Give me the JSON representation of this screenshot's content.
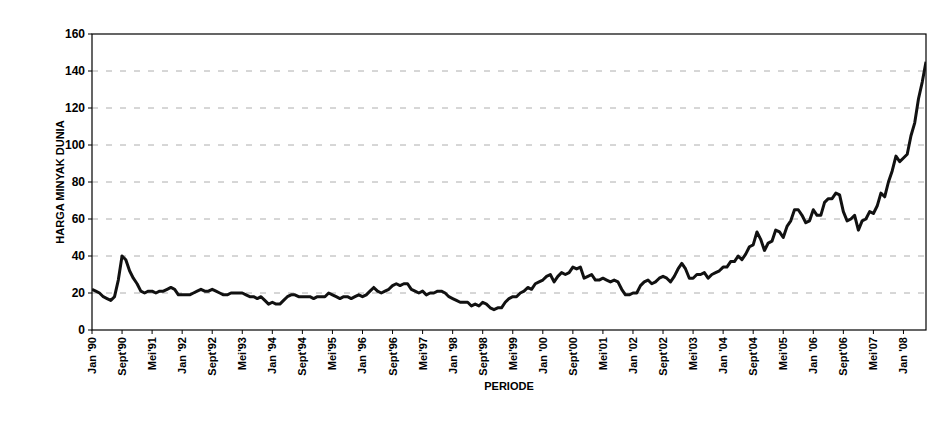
{
  "chart_data": {
    "type": "line",
    "x_label": "PERIODE",
    "y_label": "HARGA MINYAK DUNIA",
    "categories": [
      "Jan '90",
      null,
      null,
      null,
      null,
      null,
      null,
      null,
      "Sept'90",
      null,
      null,
      null,
      null,
      null,
      null,
      null,
      "Mei'91",
      null,
      null,
      null,
      null,
      null,
      null,
      null,
      "Jan '92",
      null,
      null,
      null,
      null,
      null,
      null,
      null,
      "Sept'92",
      null,
      null,
      null,
      null,
      null,
      null,
      null,
      "Mei'93",
      null,
      null,
      null,
      null,
      null,
      null,
      null,
      "Jan '94",
      null,
      null,
      null,
      null,
      null,
      null,
      null,
      "Sept'94",
      null,
      null,
      null,
      null,
      null,
      null,
      null,
      "Mei'95",
      null,
      null,
      null,
      null,
      null,
      null,
      null,
      "Jan '96",
      null,
      null,
      null,
      null,
      null,
      null,
      null,
      "Sept'96",
      null,
      null,
      null,
      null,
      null,
      null,
      null,
      "Mei'97",
      null,
      null,
      null,
      null,
      null,
      null,
      null,
      "Jan '98",
      null,
      null,
      null,
      null,
      null,
      null,
      null,
      "Sept'98",
      null,
      null,
      null,
      null,
      null,
      null,
      null,
      "Mei'99",
      null,
      null,
      null,
      null,
      null,
      null,
      null,
      "Jan '00",
      null,
      null,
      null,
      null,
      null,
      null,
      null,
      "Sept'00",
      null,
      null,
      null,
      null,
      null,
      null,
      null,
      "Mei'01",
      null,
      null,
      null,
      null,
      null,
      null,
      null,
      "Jan '02",
      null,
      null,
      null,
      null,
      null,
      null,
      null,
      "Sept'02",
      null,
      null,
      null,
      null,
      null,
      null,
      null,
      "Mei'03",
      null,
      null,
      null,
      null,
      null,
      null,
      null,
      "Jan '04",
      null,
      null,
      null,
      null,
      null,
      null,
      null,
      "Sept'04",
      null,
      null,
      null,
      null,
      null,
      null,
      null,
      "Mei'05",
      null,
      null,
      null,
      null,
      null,
      null,
      null,
      "Jan '06",
      null,
      null,
      null,
      null,
      null,
      null,
      null,
      "Sept'06",
      null,
      null,
      null,
      null,
      null,
      null,
      null,
      "Mei'07",
      null,
      null,
      null,
      null,
      null,
      null,
      null,
      "Jan '08",
      null,
      null,
      null,
      null,
      null,
      null
    ],
    "values": [
      22,
      21,
      20,
      18,
      17,
      16,
      18,
      27,
      40,
      38,
      32,
      28,
      25,
      21,
      20,
      21,
      21,
      20,
      21,
      21,
      22,
      23,
      22,
      19,
      19,
      19,
      19,
      20,
      21,
      22,
      21,
      21,
      22,
      21,
      20,
      19,
      19,
      20,
      20,
      20,
      20,
      19,
      18,
      18,
      17,
      18,
      16,
      14,
      15,
      14,
      14,
      16,
      18,
      19,
      19,
      18,
      18,
      18,
      18,
      17,
      18,
      18,
      18,
      20,
      19,
      18,
      17,
      18,
      18,
      17,
      18,
      19,
      18,
      19,
      21,
      23,
      21,
      20,
      21,
      22,
      24,
      25,
      24,
      25,
      25,
      22,
      21,
      20,
      21,
      19,
      20,
      20,
      21,
      21,
      20,
      18,
      17,
      16,
      15,
      15,
      15,
      13,
      14,
      13,
      15,
      14,
      12,
      11,
      12,
      12,
      15,
      17,
      18,
      18,
      20,
      21,
      23,
      22,
      25,
      26,
      27,
      29,
      30,
      26,
      29,
      31,
      30,
      31,
      34,
      33,
      34,
      28,
      29,
      30,
      27,
      27,
      28,
      27,
      26,
      27,
      26,
      22,
      19,
      19,
      20,
      20,
      24,
      26,
      27,
      25,
      26,
      28,
      29,
      28,
      26,
      29,
      33,
      36,
      33,
      28,
      28,
      30,
      30,
      31,
      28,
      30,
      31,
      32,
      34,
      34,
      37,
      37,
      40,
      38,
      41,
      45,
      46,
      53,
      49,
      43,
      47,
      48,
      54,
      53,
      50,
      56,
      59,
      65,
      65,
      62,
      58,
      59,
      65,
      62,
      62,
      69,
      71,
      71,
      74,
      73,
      64,
      59,
      60,
      62,
      54,
      59,
      60,
      64,
      63,
      67,
      74,
      72,
      80,
      86,
      94,
      91,
      93,
      95,
      105,
      112,
      125,
      134,
      145
    ],
    "color": "#111111",
    "ylim": [
      0,
      160
    ],
    "yticks": [
      0,
      20,
      40,
      60,
      80,
      100,
      120,
      140,
      160
    ],
    "grid": true
  }
}
